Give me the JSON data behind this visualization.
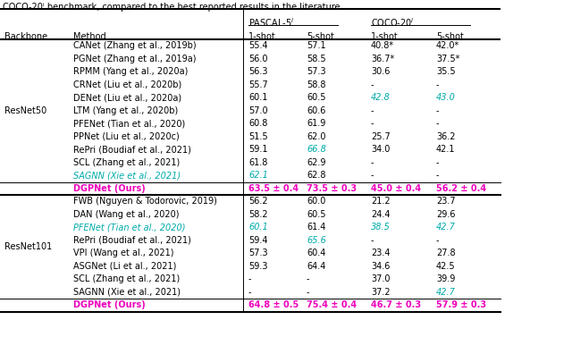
{
  "title_top": "COCO-20ⁱ benchmark, compared to the best reported results in the literature.",
  "resnet50_rows": [
    {
      "method": "CANet (Zhang et al., 2019b)",
      "p1": "55.4",
      "p5": "57.1",
      "c1": "40.8*",
      "c5": "42.0*",
      "p1_color": "black",
      "p5_color": "black",
      "c1_color": "black",
      "c5_color": "black",
      "p1_italic": false,
      "p5_italic": false,
      "c1_italic": false,
      "c5_italic": false,
      "method_italic": false,
      "method_color": "black"
    },
    {
      "method": "PGNet (Zhang et al., 2019a)",
      "p1": "56.0",
      "p5": "58.5",
      "c1": "36.7*",
      "c5": "37.5*",
      "p1_color": "black",
      "p5_color": "black",
      "c1_color": "black",
      "c5_color": "black",
      "p1_italic": false,
      "p5_italic": false,
      "c1_italic": false,
      "c5_italic": false,
      "method_italic": false,
      "method_color": "black"
    },
    {
      "method": "RPMM (Yang et al., 2020a)",
      "p1": "56.3",
      "p5": "57.3",
      "c1": "30.6",
      "c5": "35.5",
      "p1_color": "black",
      "p5_color": "black",
      "c1_color": "black",
      "c5_color": "black",
      "p1_italic": false,
      "p5_italic": false,
      "c1_italic": false,
      "c5_italic": false,
      "method_italic": false,
      "method_color": "black"
    },
    {
      "method": "CRNet (Liu et al., 2020b)",
      "p1": "55.7",
      "p5": "58.8",
      "c1": "-",
      "c5": "-",
      "p1_color": "black",
      "p5_color": "black",
      "c1_color": "black",
      "c5_color": "black",
      "p1_italic": false,
      "p5_italic": false,
      "c1_italic": false,
      "c5_italic": false,
      "method_italic": false,
      "method_color": "black"
    },
    {
      "method": "DENet (Liu et al., 2020a)",
      "p1": "60.1",
      "p5": "60.5",
      "c1": "42.8",
      "c5": "43.0",
      "p1_color": "black",
      "p5_color": "black",
      "c1_color": "cyan",
      "c5_color": "cyan",
      "p1_italic": false,
      "p5_italic": false,
      "c1_italic": true,
      "c5_italic": true,
      "method_italic": false,
      "method_color": "black"
    },
    {
      "method": "LTM (Yang et al., 2020b)",
      "p1": "57.0",
      "p5": "60.6",
      "c1": "-",
      "c5": "-",
      "p1_color": "black",
      "p5_color": "black",
      "c1_color": "black",
      "c5_color": "black",
      "p1_italic": false,
      "p5_italic": false,
      "c1_italic": false,
      "c5_italic": false,
      "method_italic": false,
      "method_color": "black"
    },
    {
      "method": "PFENet (Tian et al., 2020)",
      "p1": "60.8",
      "p5": "61.9",
      "c1": "-",
      "c5": "-",
      "p1_color": "black",
      "p5_color": "black",
      "c1_color": "black",
      "c5_color": "black",
      "p1_italic": false,
      "p5_italic": false,
      "c1_italic": false,
      "c5_italic": false,
      "method_italic": false,
      "method_color": "black"
    },
    {
      "method": "PPNet (Liu et al., 2020c)",
      "p1": "51.5",
      "p5": "62.0",
      "c1": "25.7",
      "c5": "36.2",
      "p1_color": "black",
      "p5_color": "black",
      "c1_color": "black",
      "c5_color": "black",
      "p1_italic": false,
      "p5_italic": false,
      "c1_italic": false,
      "c5_italic": false,
      "method_italic": false,
      "method_color": "black"
    },
    {
      "method": "RePri (Boudiaf et al., 2021)",
      "p1": "59.1",
      "p5": "66.8",
      "c1": "34.0",
      "c5": "42.1",
      "p1_color": "black",
      "p5_color": "cyan",
      "c1_color": "black",
      "c5_color": "black",
      "p1_italic": false,
      "p5_italic": true,
      "c1_italic": false,
      "c5_italic": false,
      "method_italic": false,
      "method_color": "black"
    },
    {
      "method": "SCL (Zhang et al., 2021)",
      "p1": "61.8",
      "p5": "62.9",
      "c1": "-",
      "c5": "-",
      "p1_color": "black",
      "p5_color": "black",
      "c1_color": "black",
      "c5_color": "black",
      "p1_italic": false,
      "p5_italic": false,
      "c1_italic": false,
      "c5_italic": false,
      "method_italic": false,
      "method_color": "black"
    },
    {
      "method": "SAGNN (Xie et al., 2021)",
      "p1": "62.1",
      "p5": "62.8",
      "c1": "-",
      "c5": "-",
      "p1_color": "cyan",
      "p5_color": "black",
      "c1_color": "black",
      "c5_color": "black",
      "p1_italic": true,
      "p5_italic": false,
      "c1_italic": false,
      "c5_italic": false,
      "method_italic": true,
      "method_color": "cyan"
    }
  ],
  "resnet50_ours": {
    "method": "DGPNet (Ours)",
    "p1": "63.5 ± 0.4",
    "p5": "73.5 ± 0.3",
    "c1": "45.0 ± 0.4",
    "c5": "56.2 ± 0.4"
  },
  "resnet101_rows": [
    {
      "method": "FWB (Nguyen & Todorovic, 2019)",
      "p1": "56.2",
      "p5": "60.0",
      "c1": "21.2",
      "c5": "23.7",
      "p1_color": "black",
      "p5_color": "black",
      "c1_color": "black",
      "c5_color": "black",
      "p1_italic": false,
      "p5_italic": false,
      "c1_italic": false,
      "c5_italic": false,
      "method_italic": false,
      "method_color": "black"
    },
    {
      "method": "DAN (Wang et al., 2020)",
      "p1": "58.2",
      "p5": "60.5",
      "c1": "24.4",
      "c5": "29.6",
      "p1_color": "black",
      "p5_color": "black",
      "c1_color": "black",
      "c5_color": "black",
      "p1_italic": false,
      "p5_italic": false,
      "c1_italic": false,
      "c5_italic": false,
      "method_italic": false,
      "method_color": "black"
    },
    {
      "method": "PFENet (Tian et al., 2020)",
      "p1": "60.1",
      "p5": "61.4",
      "c1": "38.5",
      "c5": "42.7",
      "p1_color": "cyan",
      "p5_color": "black",
      "c1_color": "cyan",
      "c5_color": "cyan",
      "p1_italic": true,
      "p5_italic": false,
      "c1_italic": true,
      "c5_italic": true,
      "method_italic": true,
      "method_color": "cyan"
    },
    {
      "method": "RePri (Boudiaf et al., 2021)",
      "p1": "59.4",
      "p5": "65.6",
      "c1": "-",
      "c5": "-",
      "p1_color": "black",
      "p5_color": "cyan",
      "c1_color": "black",
      "c5_color": "black",
      "p1_italic": false,
      "p5_italic": true,
      "c1_italic": false,
      "c5_italic": false,
      "method_italic": false,
      "method_color": "black"
    },
    {
      "method": "VPI (Wang et al., 2021)",
      "p1": "57.3",
      "p5": "60.4",
      "c1": "23.4",
      "c5": "27.8",
      "p1_color": "black",
      "p5_color": "black",
      "c1_color": "black",
      "c5_color": "black",
      "p1_italic": false,
      "p5_italic": false,
      "c1_italic": false,
      "c5_italic": false,
      "method_italic": false,
      "method_color": "black"
    },
    {
      "method": "ASGNet (Li et al., 2021)",
      "p1": "59.3",
      "p5": "64.4",
      "c1": "34.6",
      "c5": "42.5",
      "p1_color": "black",
      "p5_color": "black",
      "c1_color": "black",
      "c5_color": "black",
      "p1_italic": false,
      "p5_italic": false,
      "c1_italic": false,
      "c5_italic": false,
      "method_italic": false,
      "method_color": "black"
    },
    {
      "method": "SCL (Zhang et al., 2021)",
      "p1": "-",
      "p5": "-",
      "c1": "37.0",
      "c5": "39.9",
      "p1_color": "black",
      "p5_color": "black",
      "c1_color": "black",
      "c5_color": "black",
      "p1_italic": false,
      "p5_italic": false,
      "c1_italic": false,
      "c5_italic": false,
      "method_italic": false,
      "method_color": "black"
    },
    {
      "method": "SAGNN (Xie et al., 2021)",
      "p1": "-",
      "p5": "-",
      "c1": "37.2",
      "c5": "42.7",
      "p1_color": "black",
      "p5_color": "black",
      "c1_color": "black",
      "c5_color": "cyan",
      "p1_italic": false,
      "p5_italic": false,
      "c1_italic": false,
      "c5_italic": true,
      "method_italic": false,
      "method_color": "black"
    }
  ],
  "resnet101_ours": {
    "method": "DGPNet (Ours)",
    "p1": "64.8 ± 0.5",
    "p5": "75.4 ± 0.4",
    "c1": "46.7 ± 0.3",
    "c5": "57.9 ± 0.3"
  },
  "cyan_color": "#00AAAA",
  "magenta_color": "#EE00BB",
  "black_color": "#000000",
  "bg_color": "#FFFFFF"
}
